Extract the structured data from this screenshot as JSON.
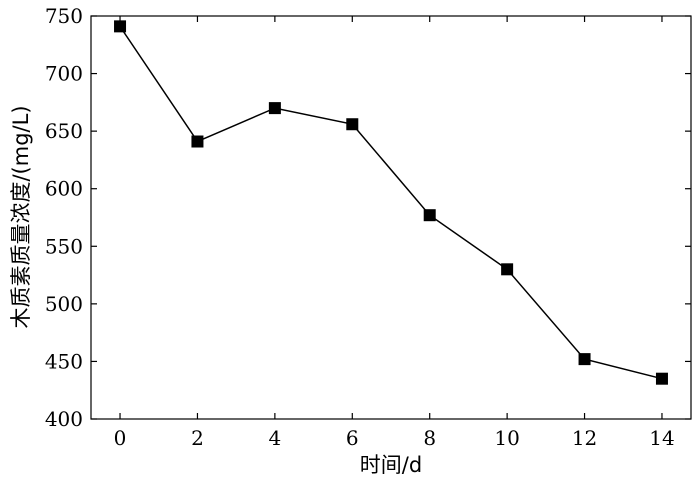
{
  "chart_data": {
    "type": "line",
    "xlabel": "时间/d",
    "ylabel": "木质素质量浓度/(mg/L)",
    "xlim": [
      -0.75,
      14.75
    ],
    "ylim": [
      400,
      750
    ],
    "x_ticks": [
      0,
      2,
      4,
      6,
      8,
      10,
      12,
      14
    ],
    "y_ticks": [
      400,
      450,
      500,
      550,
      600,
      650,
      700,
      750
    ],
    "grid": false,
    "marker": "square",
    "colors": {
      "line": "#000000",
      "marker": "#000000"
    },
    "series": [
      {
        "x": [
          0,
          2,
          4,
          6,
          8,
          10,
          12,
          14
        ],
        "y": [
          741,
          641,
          670,
          656,
          577,
          530,
          452,
          435
        ]
      }
    ]
  }
}
